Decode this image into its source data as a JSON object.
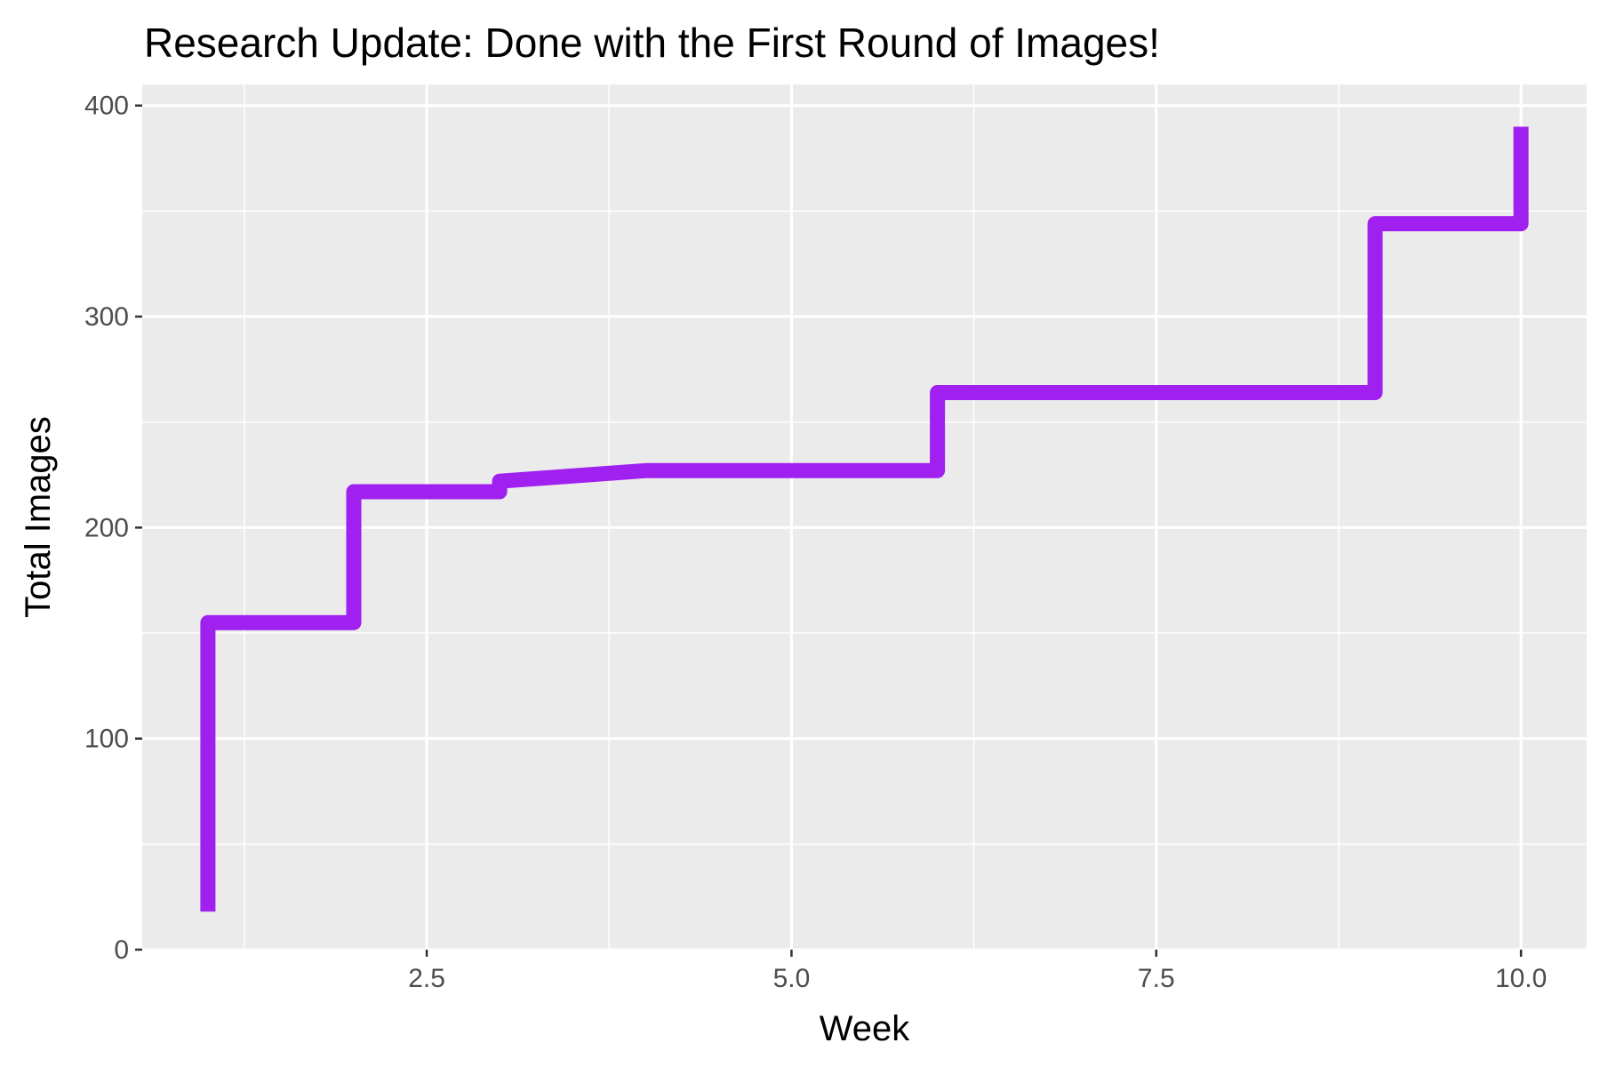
{
  "chart_data": {
    "type": "line",
    "step": true,
    "title": "Research Update: Done with the First Round of Images!",
    "xlabel": "Week",
    "ylabel": "Total Images",
    "xlim": [
      0.55,
      10.45
    ],
    "ylim": [
      0,
      410
    ],
    "xticks": [
      2.5,
      5.0,
      7.5,
      10.0
    ],
    "xtick_labels": [
      "2.5",
      "5.0",
      "7.5",
      "10.0"
    ],
    "yticks": [
      0,
      100,
      200,
      300,
      400
    ],
    "ytick_labels": [
      "0",
      "100",
      "200",
      "300",
      "400"
    ],
    "grid": true,
    "legend": "none",
    "colors": {
      "line": "#a020f0",
      "panel": "#ebebeb",
      "grid": "#ffffff",
      "tick": "#333333"
    },
    "series": [
      {
        "points": [
          [
            1,
            18
          ],
          [
            1,
            155
          ],
          [
            2,
            155
          ],
          [
            2,
            217
          ],
          [
            3,
            217
          ],
          [
            3,
            222
          ],
          [
            4,
            227
          ],
          [
            6,
            227
          ],
          [
            6,
            264
          ],
          [
            9,
            264
          ],
          [
            9,
            344
          ],
          [
            10,
            344
          ],
          [
            10,
            390
          ]
        ]
      }
    ]
  }
}
